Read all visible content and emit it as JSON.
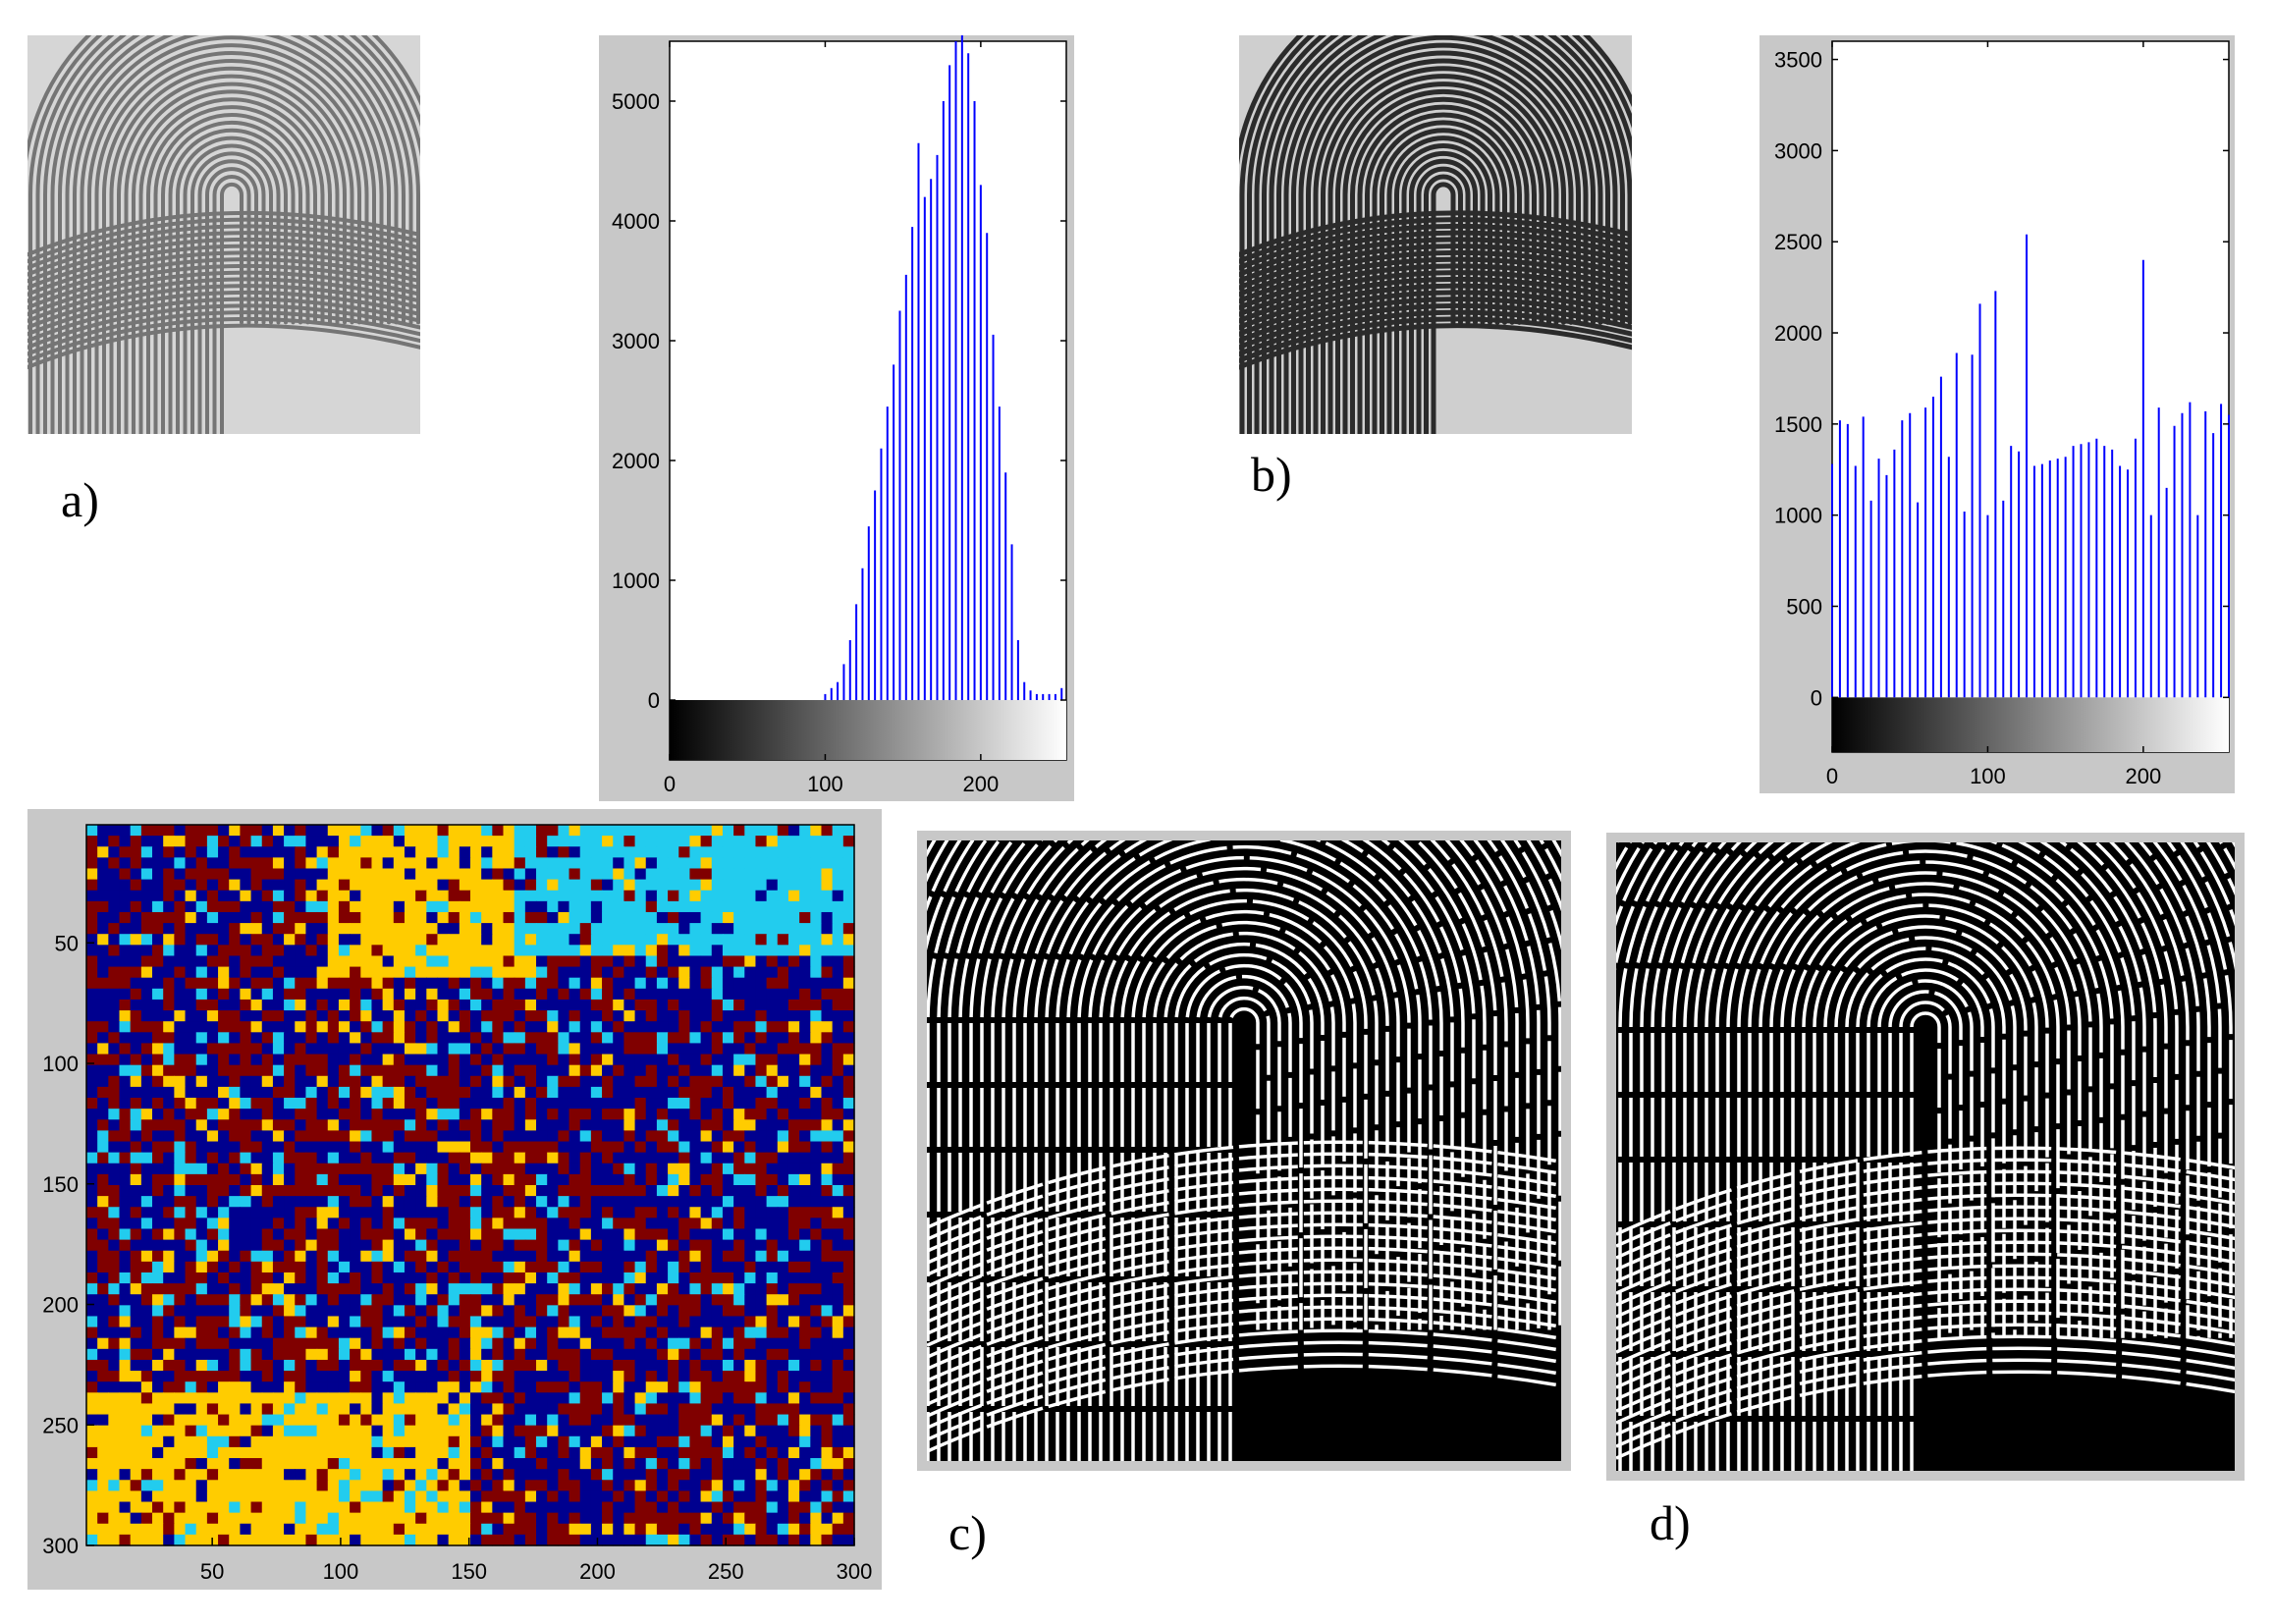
{
  "figure": {
    "panels": [
      {
        "id": "a",
        "label": "a)"
      },
      {
        "id": "b",
        "label": "b)"
      },
      {
        "id": "c",
        "label": "c)"
      },
      {
        "id": "d",
        "label": "d)"
      }
    ]
  },
  "chart_data": [
    {
      "type": "bar",
      "ylim": [
        -500,
        5500
      ],
      "xlim": [
        0,
        255
      ],
      "yticks": [
        0,
        1000,
        2000,
        3000,
        4000,
        5000
      ],
      "xticks": [
        0,
        100,
        200
      ],
      "colorbar": "grayscale",
      "grid": false,
      "series": [
        {
          "color": "#0000ff",
          "x": [
            100,
            104,
            108,
            112,
            116,
            120,
            124,
            128,
            132,
            136,
            140,
            144,
            148,
            152,
            156,
            160,
            164,
            168,
            172,
            176,
            180,
            184,
            188,
            192,
            196,
            200,
            204,
            208,
            212,
            216,
            220,
            224,
            228,
            232,
            236,
            240,
            244,
            248,
            252
          ],
          "values": [
            50,
            100,
            150,
            300,
            500,
            800,
            1100,
            1450,
            1750,
            2100,
            2450,
            2800,
            3250,
            3550,
            3950,
            4650,
            4200,
            4350,
            4550,
            5000,
            5300,
            5500,
            5600,
            5400,
            5000,
            4300,
            3900,
            3050,
            2450,
            1900,
            1300,
            500,
            150,
            80,
            50,
            50,
            50,
            50,
            100
          ]
        }
      ]
    },
    {
      "type": "bar",
      "ylim": [
        -300,
        3600
      ],
      "xlim": [
        0,
        255
      ],
      "yticks": [
        0,
        500,
        1000,
        1500,
        2000,
        2500,
        3000,
        3500
      ],
      "xticks": [
        0,
        100,
        200
      ],
      "colorbar": "grayscale",
      "grid": false,
      "series": [
        {
          "color": "#0000ff",
          "x": [
            0,
            5,
            10,
            15,
            20,
            25,
            30,
            35,
            40,
            45,
            50,
            55,
            60,
            65,
            70,
            75,
            80,
            85,
            90,
            95,
            100,
            105,
            110,
            115,
            120,
            125,
            130,
            135,
            140,
            145,
            150,
            155,
            160,
            165,
            170,
            175,
            180,
            185,
            190,
            195,
            200,
            205,
            210,
            215,
            220,
            225,
            230,
            235,
            240,
            245,
            250,
            255
          ],
          "values": [
            1280,
            1520,
            1500,
            1270,
            1540,
            1080,
            1310,
            1220,
            1360,
            1520,
            1560,
            1070,
            1590,
            1650,
            1760,
            1320,
            1890,
            1020,
            1880,
            2160,
            1000,
            2230,
            1080,
            1380,
            1350,
            2540,
            1270,
            1280,
            1300,
            1310,
            1320,
            1380,
            1390,
            1400,
            1420,
            1380,
            1360,
            1270,
            1250,
            1420,
            2400,
            1000,
            1590,
            1150,
            1490,
            1560,
            1620,
            1000,
            1570,
            1450,
            1610,
            1550
          ]
        }
      ]
    },
    {
      "type": "heatmap",
      "xlim": [
        1,
        300
      ],
      "ylim": [
        1,
        300
      ],
      "xticks": [
        50,
        100,
        150,
        200,
        250,
        300
      ],
      "yticks": [
        50,
        100,
        150,
        200,
        250,
        300
      ],
      "colormap": [
        "#00008f",
        "#800000",
        "#ffcc00",
        "#22ccee"
      ],
      "grid": false
    }
  ]
}
